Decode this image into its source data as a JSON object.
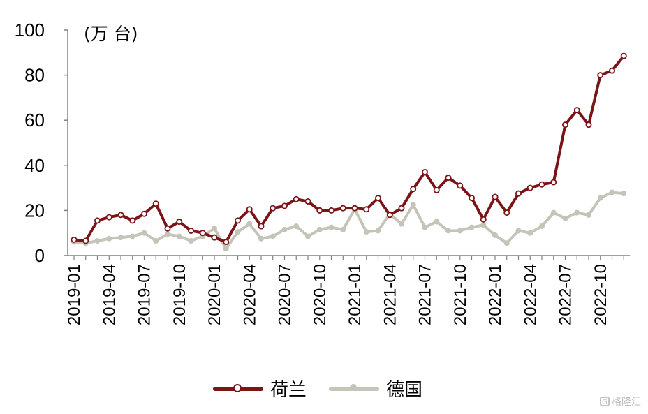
{
  "chart_data": {
    "type": "line",
    "unit_label": "(万 台)",
    "ylim": [
      0,
      100
    ],
    "yticks": [
      0,
      20,
      40,
      60,
      80,
      100
    ],
    "x": [
      "2019-01",
      "2019-02",
      "2019-03",
      "2019-04",
      "2019-05",
      "2019-06",
      "2019-07",
      "2019-08",
      "2019-09",
      "2019-10",
      "2019-11",
      "2019-12",
      "2020-01",
      "2020-02",
      "2020-03",
      "2020-04",
      "2020-05",
      "2020-06",
      "2020-07",
      "2020-08",
      "2020-09",
      "2020-10",
      "2020-11",
      "2020-12",
      "2021-01",
      "2021-02",
      "2021-03",
      "2021-04",
      "2021-05",
      "2021-06",
      "2021-07",
      "2021-08",
      "2021-09",
      "2021-10",
      "2021-11",
      "2021-12",
      "2022-01",
      "2022-02",
      "2022-03",
      "2022-04",
      "2022-05",
      "2022-06",
      "2022-07",
      "2022-08",
      "2022-09",
      "2022-10",
      "2022-11",
      "2022-12"
    ],
    "xtick_labels": [
      "2019-01",
      "2019-04",
      "2019-07",
      "2019-10",
      "2020-01",
      "2020-04",
      "2020-07",
      "2020-10",
      "2021-01",
      "2021-04",
      "2021-07",
      "2021-10",
      "2022-01",
      "2022-04",
      "2022-07",
      "2022-10"
    ],
    "grid": false,
    "legend_position": "bottom",
    "series": [
      {
        "name": "荷兰",
        "color": "#7b1416",
        "values": [
          7,
          6.5,
          15.5,
          17,
          18,
          15.5,
          18.5,
          23,
          12,
          15,
          11,
          10,
          8,
          6,
          15.5,
          20.5,
          13,
          21,
          22,
          25,
          24,
          20,
          20,
          21,
          21,
          20.5,
          25.5,
          18,
          21,
          29.5,
          37,
          29,
          34.5,
          31,
          25.5,
          16,
          26,
          19,
          27.5,
          30,
          31.5,
          32.5,
          58,
          64.5,
          58,
          80,
          82,
          88.5
        ]
      },
      {
        "name": "德国",
        "color": "#c4c4b8",
        "values": [
          6,
          5.5,
          6.5,
          7.5,
          8,
          8.5,
          10,
          6.5,
          9.5,
          8.5,
          6.5,
          8.5,
          12,
          3,
          10.5,
          14,
          7.5,
          8.5,
          11.5,
          13,
          8.5,
          11.5,
          12.5,
          11.5,
          20.5,
          10.5,
          11,
          18.5,
          14,
          22.5,
          12.5,
          15,
          11,
          11,
          12.5,
          13.5,
          9,
          5.5,
          11,
          10,
          13,
          19,
          16.5,
          19,
          18,
          25.5,
          28,
          27.5
        ]
      }
    ]
  },
  "watermark": {
    "text": "格隆汇",
    "icon": "g-logo-icon"
  }
}
